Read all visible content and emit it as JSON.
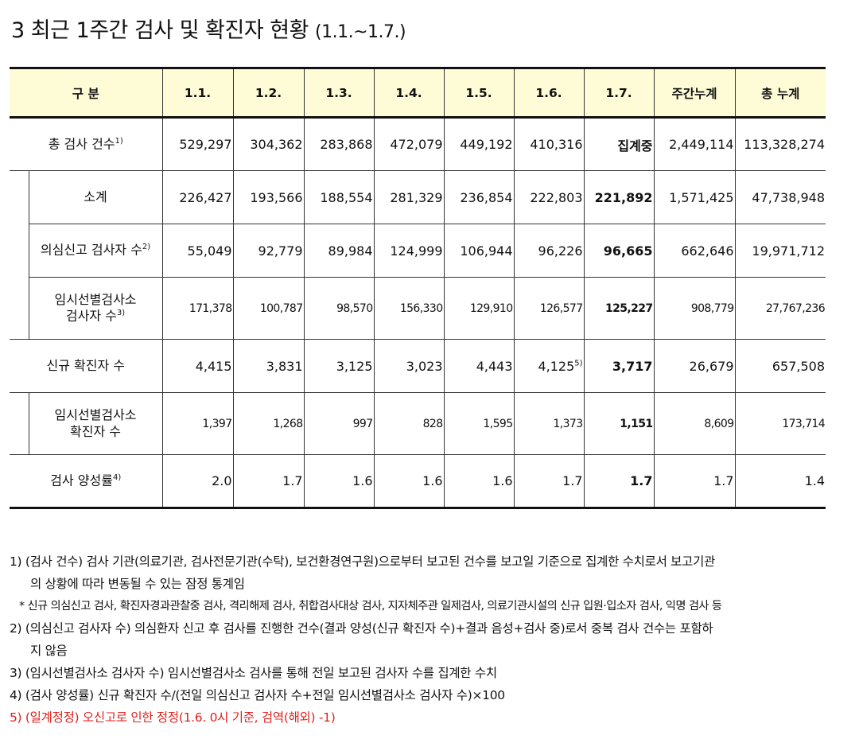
{
  "title": {
    "main": "3  최근 1주간 검사 및 확진자 현황",
    "range": "(1.1.~1.7.)"
  },
  "table": {
    "header": [
      "구 분",
      "1.1.",
      "1.2.",
      "1.3.",
      "1.4.",
      "1.5.",
      "1.6.",
      "1.7.",
      "주간누계",
      "총 누계"
    ],
    "rows": [
      {
        "label": "총 검사 건수",
        "sup": "1)",
        "values": [
          "529,297",
          "304,362",
          "283,868",
          "472,079",
          "449,192",
          "410,316",
          "집계중",
          "2,449,114",
          "113,328,274"
        ]
      },
      {
        "label": "소계",
        "values": [
          "226,427",
          "193,566",
          "188,554",
          "281,329",
          "236,854",
          "222,803",
          "221,892",
          "1,571,425",
          "47,738,948"
        ]
      },
      {
        "label": "의심신고 검사자 수",
        "sup": "2)",
        "values": [
          "55,049",
          "92,779",
          "89,984",
          "124,999",
          "106,944",
          "96,226",
          "96,665",
          "662,646",
          "19,971,712"
        ]
      },
      {
        "label1": "임시선별검사소",
        "label2": "검사자 수",
        "sup": "3)",
        "values": [
          "171,378",
          "100,787",
          "98,570",
          "156,330",
          "129,910",
          "126,577",
          "125,227",
          "908,779",
          "27,767,236"
        ]
      },
      {
        "label": "신규 확진자 수",
        "values": [
          "4,415",
          "3,831",
          "3,125",
          "3,023",
          "4,443",
          "4,125",
          "3,717",
          "26,679",
          "657,508"
        ],
        "sup6": "5)"
      },
      {
        "label1": "임시선별검사소",
        "label2": "확진자 수",
        "values": [
          "1,397",
          "1,268",
          "997",
          "828",
          "1,595",
          "1,373",
          "1,151",
          "8,609",
          "173,714"
        ]
      },
      {
        "label": "검사 양성률",
        "sup": "4)",
        "values": [
          "2.0",
          "1.7",
          "1.6",
          "1.6",
          "1.6",
          "1.7",
          "1.7",
          "1.7",
          "1.4"
        ]
      }
    ]
  },
  "notes": [
    "1) (검사 건수) 검사 기관(의료기관, 검사전문기관(수탁), 보건환경연구원)으로부터 보고된 건수를 보고일 기준으로 집계한 수치로서 보고기관",
    "의 상황에 따라 변동될 수 있는 잠정 통계임",
    "* 신규 의심신고 검사, 확진자경과관찰중 검사, 격리해제 검사, 취합검사대상 검사, 지자체주관 일제검사, 의료기관시설의 신규 입원·입소자 검사, 익명 검사 등",
    "2) (의심신고 검사자 수) 의심환자 신고 후 검사를 진행한 건수(결과 양성(신규 확진자 수)+결과 음성+검사 중)로서 중복 검사 건수는 포함하",
    "지 않음",
    "3) (임시선별검사소 검사자 수) 임시선별검사소 검사를 통해 전일 보고된 검사자 수를 집계한 수치",
    "4) (검사 양성률) 신규 확진자 수/(전일 의심신고 검사자 수+전일 임시선별검사소 검사자 수)×100",
    "5) (일계정정) 오신고로 인한 정정(1.6. 0시 기준, 검역(해외) -1)"
  ]
}
